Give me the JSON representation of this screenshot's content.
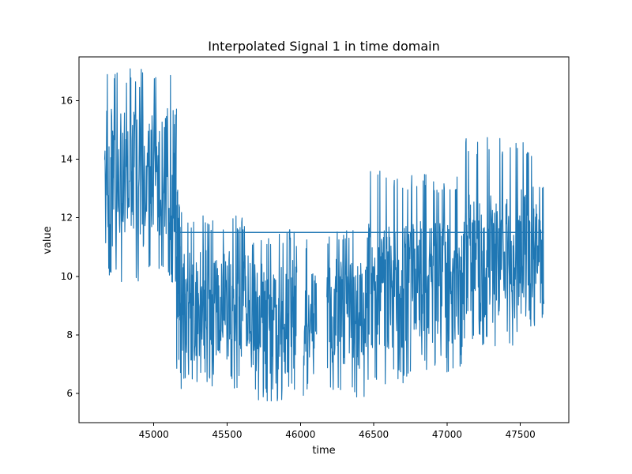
{
  "chart_data": {
    "type": "line",
    "title": "Interpolated Signal 1 in time domain",
    "xlabel": "time",
    "ylabel": "value",
    "xlim": [
      44490,
      47830
    ],
    "ylim": [
      5.0,
      17.5
    ],
    "x_ticks": [
      45000,
      45500,
      46000,
      46500,
      47000,
      47500
    ],
    "y_ticks": [
      6,
      8,
      10,
      12,
      14,
      16
    ],
    "grid": false,
    "legend": "none",
    "series": [
      {
        "color": "#1f77b4",
        "segments": [
          {
            "x_start": 44665,
            "x_end": 45155,
            "min": 9.8,
            "max": 17.1,
            "center": 13.4,
            "spread": 2.4
          },
          {
            "x_start": 45155,
            "x_end": 45180,
            "min": 6.7,
            "max": 13.0,
            "center": 10.2,
            "spread": 1.8
          },
          {
            "x_start": 45180,
            "x_end": 45650,
            "min": 6.1,
            "max": 12.2,
            "center": 9.0,
            "spread": 1.9
          },
          {
            "x_start": 45650,
            "x_end": 45975,
            "min": 5.7,
            "max": 11.6,
            "center": 8.6,
            "spread": 2.0
          },
          {
            "x_start": 46020,
            "x_end": 46110,
            "min": 5.8,
            "max": 11.5,
            "center": 8.6,
            "spread": 2.0
          },
          {
            "x_start": 46180,
            "x_end": 46450,
            "min": 5.7,
            "max": 11.6,
            "center": 8.7,
            "spread": 1.9
          },
          {
            "x_start": 46450,
            "x_end": 46750,
            "min": 6.2,
            "max": 13.6,
            "center": 9.6,
            "spread": 2.2
          },
          {
            "x_start": 46750,
            "x_end": 47100,
            "min": 6.7,
            "max": 13.5,
            "center": 9.8,
            "spread": 2.1
          },
          {
            "x_start": 47100,
            "x_end": 47500,
            "min": 7.6,
            "max": 14.8,
            "center": 10.6,
            "spread": 2.2
          },
          {
            "x_start": 47500,
            "x_end": 47660,
            "min": 8.2,
            "max": 14.6,
            "center": 11.1,
            "spread": 2.1
          }
        ],
        "baseline": {
          "x_start": 45150,
          "x_end": 47660,
          "value": 11.5
        }
      }
    ]
  }
}
